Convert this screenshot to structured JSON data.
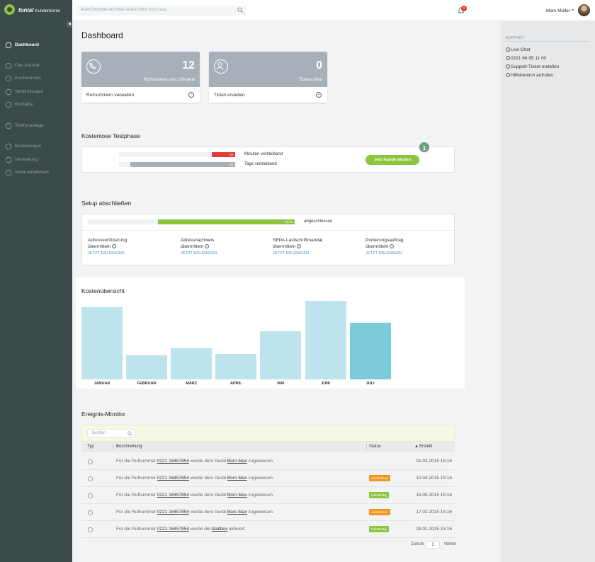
{
  "brand": {
    "name": "fonial",
    "subtitle": "Kundenkonto"
  },
  "search": {
    "placeholder": "AutoComplete auf Wiki-Artikel steht noch aus"
  },
  "notifications": {
    "count": "3"
  },
  "user": {
    "name": "Mark Müller"
  },
  "sidebar": {
    "items": [
      {
        "label": "Dashboard",
        "icon": "speedometer-icon",
        "active": true
      },
      {
        "label": "Fax-Journal",
        "icon": "fax-icon"
      },
      {
        "label": "Konferenzen",
        "icon": "conference-icon"
      },
      {
        "label": "Verbindungen",
        "icon": "phone-icon"
      },
      {
        "label": "Kontakte",
        "icon": "contacts-icon"
      },
      {
        "label": "Telefonanlage",
        "icon": "phone-system-icon"
      },
      {
        "label": "Bestellungen",
        "icon": "cart-icon"
      },
      {
        "label": "Verwaltung",
        "icon": "gear-icon"
      },
      {
        "label": "fonial empfehlen",
        "icon": "recommend-icon"
      }
    ]
  },
  "support": {
    "title": "SUPPORT",
    "items": [
      {
        "label": "Live Chat",
        "icon": "chat-icon"
      },
      {
        "label": "0221 66 95 11 00",
        "icon": "phone-icon"
      },
      {
        "label": "Support-Ticket erstellen",
        "icon": "ticket-icon"
      },
      {
        "label": "Hilfebereich aufrufen",
        "icon": "help-icon"
      }
    ]
  },
  "main": {
    "title": "Dashboard",
    "cards": [
      {
        "number": "12",
        "subtitle": "Rufnummern von 100 aktiv",
        "link": "Rufnummern verwalten",
        "icon": "phone-icon"
      },
      {
        "number": "0",
        "subtitle": "Tickets offen",
        "link": "Ticket erstellen",
        "icon": "user-icon"
      }
    ]
  },
  "trial": {
    "title": "Kostenlose Testphase",
    "minutes": {
      "value": "16",
      "label": "Minuten verbleibend",
      "fraction": 0.2
    },
    "days": {
      "value": "35",
      "label": "Tage verbleibend",
      "fraction": 0.9
    },
    "button": "Jetzt Kunde werden",
    "badge": "1"
  },
  "setup": {
    "title": "Setup abschließen",
    "progress_label": "66 %",
    "progress_fraction": 0.66,
    "progress_text": "abgeschlossen",
    "items": [
      {
        "line1": "Adressverifizierung",
        "line2": "übermitteln",
        "action": "JETZT ERLEDIGEN"
      },
      {
        "line1": "Adressnachweis",
        "line2": "übermitteln",
        "action": "JETZT ERLEDIGEN"
      },
      {
        "line1": "SEPA-Lastschriftmandat",
        "line2": "übermitteln",
        "action": "JETZT ERLEDIGEN"
      },
      {
        "line1": "Portierungsauftrag",
        "line2": "übermitteln",
        "action": "JETZT ERLEDIGEN"
      }
    ]
  },
  "costs": {
    "title": "Kostenübersicht"
  },
  "chart_data": {
    "type": "bar",
    "title": "Kostenübersicht",
    "categories": [
      "JANUAR",
      "FEBRUAR",
      "MÄRZ",
      "APRIL",
      "MAI",
      "JUNI",
      "JULI"
    ],
    "values": [
      92,
      31,
      40,
      32,
      61,
      100,
      72
    ],
    "highlight": "JULI",
    "ylim": [
      0,
      100
    ],
    "xlabel": "",
    "ylabel": ""
  },
  "events": {
    "title": "Ereignis-Monitor",
    "search_placeholder": "Suchen",
    "columns": {
      "type": "Typ",
      "description": "Beschreibung",
      "status": "Status",
      "created": "Erstellt"
    },
    "rows": [
      {
        "icon": "user-assign-icon",
        "pre": "Für die Rufnummer",
        "number": "0221 16457854",
        "mid": "wurde dem Gerät",
        "target": "Büro Max",
        "post": "zugewiesen.",
        "status": "",
        "date": "01.03.2015 15:16"
      },
      {
        "icon": "device-icon",
        "pre": "Für die Rufnummer",
        "number": "0221 16457854",
        "mid": "wurde dem Gerät",
        "target": "Büro Max",
        "post": "zugewiesen.",
        "status": "Ausstehend",
        "date": "10.04.2015 15:16"
      },
      {
        "icon": "user-assign-icon",
        "pre": "Für die Rufnummer",
        "number": "0221 16457854",
        "mid": "wurde dem Gerät",
        "target": "Büro Max",
        "post": "zugewiesen.",
        "status": "Vollständig",
        "date": "15.05.2015 15:16"
      },
      {
        "icon": "phone-icon",
        "pre": "Für die Rufnummer",
        "number": "0221 16457854",
        "mid": "wurde dem Gerät",
        "target": "Büro Max",
        "post": "zugewiesen.",
        "status": "Ausstehend",
        "date": "17.02.2015 15:16"
      },
      {
        "icon": "voicemail-icon",
        "pre": "Für die Rufnummer",
        "number": "0221 16457854",
        "mid": "wurde die",
        "target": "Mailbox",
        "post": "aktiviert.",
        "status": "Vollständig",
        "date": "28.01.2015 15:16"
      }
    ],
    "pager": {
      "prev": "Zurück",
      "page": "1",
      "next": "Weiter"
    }
  },
  "colors": {
    "sidebar": "#3b4a4a",
    "accent_green": "#8cc63f",
    "status_pending": "#f0961e",
    "status_complete": "#8cc63f",
    "red": "#e53935"
  }
}
